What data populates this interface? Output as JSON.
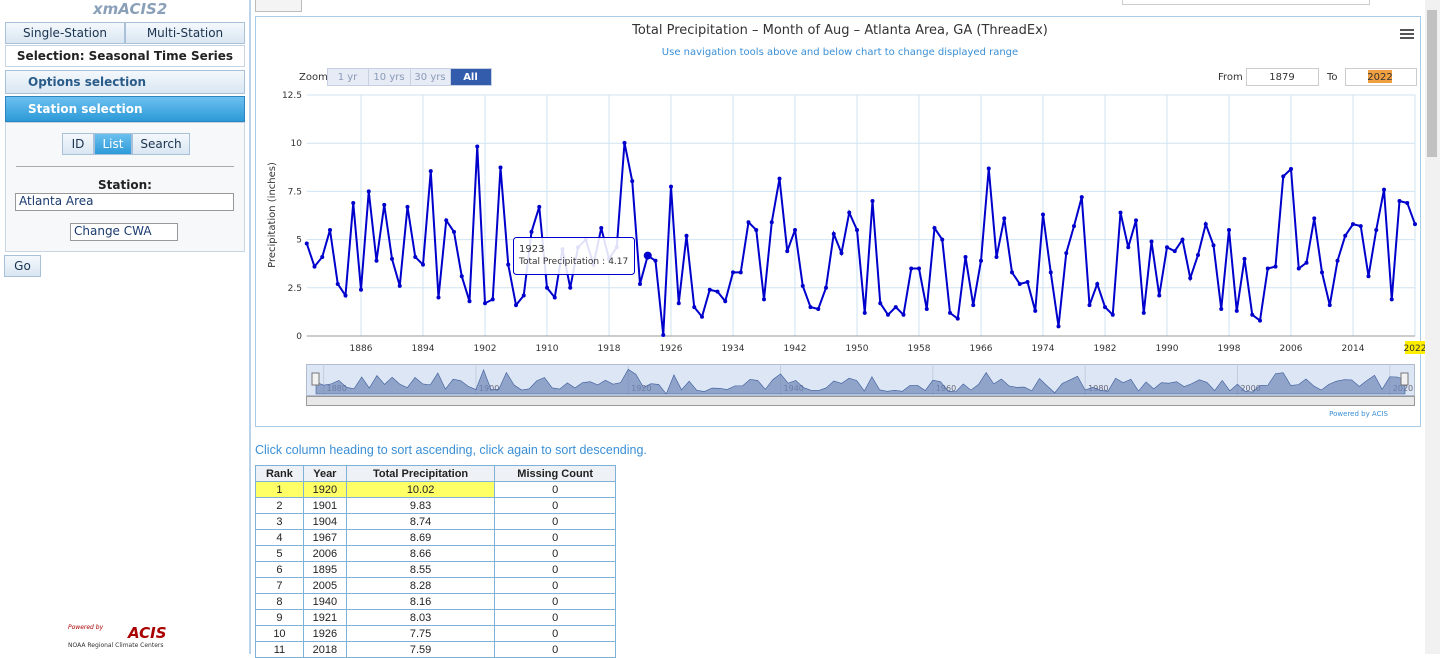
{
  "app": {
    "logo": "xmACIS2",
    "tabs": [
      "Single-Station",
      "Multi-Station"
    ],
    "selection": "Selection: Seasonal Time Series",
    "options_header": "Options selection",
    "station_header": "Station selection",
    "modes": [
      "ID",
      "List",
      "Search"
    ],
    "station_label": "Station:",
    "station_value": "Atlanta Area",
    "cwa_value": "Change CWA",
    "go": "Go",
    "footer": {
      "powered": "Powered by",
      "brand": "ACIS",
      "org": "NOAA Regional Climate Centers"
    }
  },
  "chart_data": {
    "type": "line",
    "title": "Total Precipitation – Month of Aug – Atlanta Area, GA (ThreadEx)",
    "subtitle": "Use navigation tools above and below chart to change displayed range",
    "y_label": "Precipitation (inches)",
    "zoom": {
      "label": "Zoom",
      "buttons": [
        "1 yr",
        "10 yrs",
        "30 yrs",
        "All"
      ]
    },
    "range": {
      "from_label": "From",
      "from": "1879",
      "to_label": "To",
      "to": "2022"
    },
    "credit": "Powered by ACIS",
    "x": [
      1879,
      1880,
      1881,
      1882,
      1883,
      1884,
      1885,
      1886,
      1887,
      1888,
      1889,
      1890,
      1891,
      1892,
      1893,
      1894,
      1895,
      1896,
      1897,
      1898,
      1899,
      1900,
      1901,
      1902,
      1903,
      1904,
      1905,
      1906,
      1907,
      1908,
      1909,
      1910,
      1911,
      1912,
      1913,
      1914,
      1915,
      1916,
      1917,
      1918,
      1919,
      1920,
      1921,
      1922,
      1923,
      1924,
      1925,
      1926,
      1927,
      1928,
      1929,
      1930,
      1931,
      1932,
      1933,
      1934,
      1935,
      1936,
      1937,
      1938,
      1939,
      1940,
      1941,
      1942,
      1943,
      1944,
      1945,
      1946,
      1947,
      1948,
      1949,
      1950,
      1951,
      1952,
      1953,
      1954,
      1955,
      1956,
      1957,
      1958,
      1959,
      1960,
      1961,
      1962,
      1963,
      1964,
      1965,
      1966,
      1967,
      1968,
      1969,
      1970,
      1971,
      1972,
      1973,
      1974,
      1975,
      1976,
      1977,
      1978,
      1979,
      1980,
      1981,
      1982,
      1983,
      1984,
      1985,
      1986,
      1987,
      1988,
      1989,
      1990,
      1991,
      1992,
      1993,
      1994,
      1995,
      1996,
      1997,
      1998,
      1999,
      2000,
      2001,
      2002,
      2003,
      2004,
      2005,
      2006,
      2007,
      2008,
      2009,
      2010,
      2011,
      2012,
      2013,
      2014,
      2015,
      2016,
      2017,
      2018,
      2019,
      2020,
      2021,
      2022
    ],
    "series": [
      {
        "name": "Total Precipitation",
        "color": "#0000cc",
        "values": [
          4.8,
          3.6,
          4.1,
          5.5,
          2.7,
          2.1,
          6.9,
          2.4,
          7.5,
          3.9,
          6.8,
          4.0,
          2.6,
          6.7,
          4.1,
          3.7,
          8.55,
          2.0,
          6.0,
          5.4,
          3.1,
          1.8,
          9.83,
          1.7,
          1.9,
          8.74,
          3.7,
          1.6,
          2.1,
          5.4,
          6.7,
          2.5,
          2.0,
          4.5,
          2.5,
          4.6,
          5.0,
          3.7,
          5.6,
          4.0,
          4.6,
          10.02,
          8.03,
          2.7,
          4.17,
          3.9,
          0.05,
          7.75,
          1.7,
          5.2,
          1.5,
          1.0,
          2.4,
          2.3,
          1.8,
          3.3,
          3.3,
          5.9,
          5.5,
          1.9,
          5.9,
          8.16,
          4.4,
          5.5,
          2.6,
          1.5,
          1.4,
          2.5,
          5.3,
          4.3,
          6.4,
          5.5,
          1.2,
          7.0,
          1.7,
          1.1,
          1.5,
          1.1,
          3.5,
          3.5,
          1.4,
          5.6,
          5.0,
          1.2,
          0.9,
          4.1,
          1.6,
          3.9,
          8.69,
          4.1,
          6.1,
          3.3,
          2.7,
          2.8,
          1.3,
          6.3,
          3.3,
          0.5,
          4.3,
          5.7,
          7.2,
          1.6,
          2.7,
          1.5,
          1.1,
          6.4,
          4.6,
          6.0,
          1.2,
          4.9,
          2.1,
          4.6,
          4.4,
          5.0,
          3.0,
          4.2,
          5.8,
          4.7,
          1.4,
          5.5,
          1.3,
          4.0,
          1.1,
          0.8,
          3.5,
          3.6,
          8.28,
          8.66,
          3.5,
          3.8,
          6.1,
          3.3,
          1.6,
          3.9,
          5.2,
          5.8,
          5.7,
          3.1,
          5.5,
          7.59,
          1.9,
          7.0,
          6.9,
          5.8
        ]
      }
    ],
    "xlim": [
      1879,
      2022
    ],
    "xticks": [
      1886,
      1894,
      1902,
      1910,
      1918,
      1926,
      1934,
      1942,
      1950,
      1958,
      1966,
      1974,
      1982,
      1990,
      1998,
      2006,
      2014,
      2022
    ],
    "ylim": [
      0,
      12.5
    ],
    "yticks": [
      0,
      2.5,
      5,
      7.5,
      10,
      12.5
    ],
    "grid": true,
    "navigator_xticks": [
      1880,
      1900,
      1920,
      1940,
      1960,
      1980,
      2000,
      2020
    ],
    "tooltip_index": 44,
    "tooltip_separator": ":"
  },
  "table": {
    "hint": "Click column heading to sort ascending, click again to sort descending.",
    "headers": [
      "Rank",
      "Year",
      "Total Precipitation",
      "Missing Count"
    ],
    "rows": [
      [
        1,
        1920,
        10.02,
        0
      ],
      [
        2,
        1901,
        9.83,
        0
      ],
      [
        3,
        1904,
        8.74,
        0
      ],
      [
        4,
        1967,
        8.69,
        0
      ],
      [
        5,
        2006,
        8.66,
        0
      ],
      [
        6,
        1895,
        8.55,
        0
      ],
      [
        7,
        2005,
        8.28,
        0
      ],
      [
        8,
        1940,
        8.16,
        0
      ],
      [
        9,
        1921,
        8.03,
        0
      ],
      [
        10,
        1926,
        7.75,
        0
      ],
      [
        11,
        2018,
        7.59,
        0
      ]
    ]
  }
}
